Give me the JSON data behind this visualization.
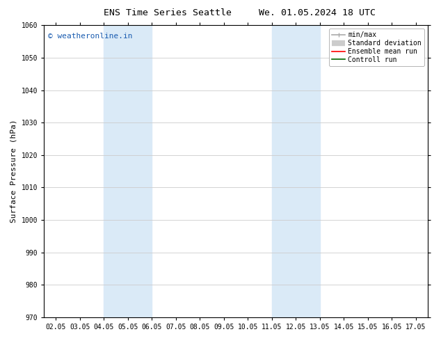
{
  "title_left": "ENS Time Series Seattle",
  "title_right": "We. 01.05.2024 18 UTC",
  "ylabel": "Surface Pressure (hPa)",
  "xlabel": "",
  "ylim": [
    970,
    1060
  ],
  "yticks": [
    970,
    980,
    990,
    1000,
    1010,
    1020,
    1030,
    1040,
    1050,
    1060
  ],
  "xlim": [
    0,
    15
  ],
  "xtick_labels": [
    "02.05",
    "03.05",
    "04.05",
    "05.05",
    "06.05",
    "07.05",
    "08.05",
    "09.05",
    "10.05",
    "11.05",
    "12.05",
    "13.05",
    "14.05",
    "15.05",
    "16.05",
    "17.05"
  ],
  "xtick_positions": [
    0,
    1,
    2,
    3,
    4,
    5,
    6,
    7,
    8,
    9,
    10,
    11,
    12,
    13,
    14,
    15
  ],
  "shaded_regions": [
    {
      "xmin": 2.0,
      "xmax": 4.0,
      "color": "#daeaf7"
    },
    {
      "xmin": 9.0,
      "xmax": 11.0,
      "color": "#daeaf7"
    }
  ],
  "watermark_text": "© weatheronline.in",
  "watermark_color": "#1a5cb0",
  "background_color": "#ffffff",
  "legend_entries": [
    {
      "label": "min/max",
      "color": "#aaaaaa",
      "lw": 1.2
    },
    {
      "label": "Standard deviation",
      "color": "#cccccc",
      "lw": 6
    },
    {
      "label": "Ensemble mean run",
      "color": "#ff0000",
      "lw": 1.2
    },
    {
      "label": "Controll run",
      "color": "#006600",
      "lw": 1.2
    }
  ],
  "grid_color": "#cccccc",
  "spine_color": "#000000",
  "font_family": "DejaVu Sans Mono",
  "title_fontsize": 9.5,
  "tick_fontsize": 7,
  "ylabel_fontsize": 8,
  "watermark_fontsize": 8,
  "legend_fontsize": 7
}
